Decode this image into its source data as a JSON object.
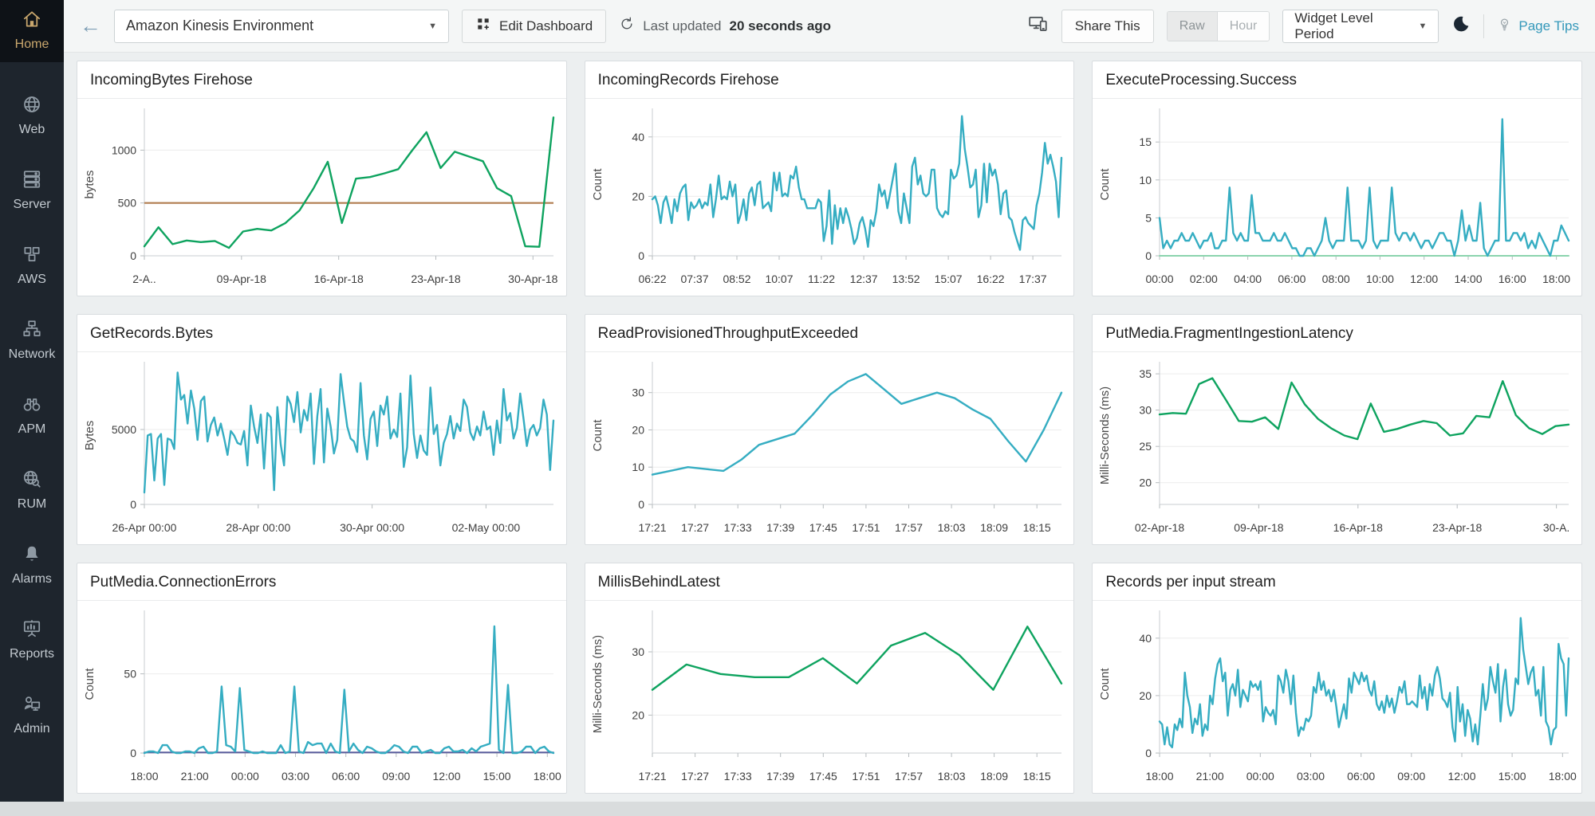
{
  "sidebar": {
    "items": [
      {
        "label": "Home",
        "icon": "home-icon",
        "active": true
      },
      {
        "label": "Web",
        "icon": "globe-icon",
        "active": false
      },
      {
        "label": "Server",
        "icon": "server-icon",
        "active": false
      },
      {
        "label": "AWS",
        "icon": "aws-cubes-icon",
        "active": false
      },
      {
        "label": "Network",
        "icon": "network-icon",
        "active": false
      },
      {
        "label": "APM",
        "icon": "binoculars-icon",
        "active": false
      },
      {
        "label": "RUM",
        "icon": "globe-magnifier-icon",
        "active": false
      },
      {
        "label": "Alarms",
        "icon": "bell-icon",
        "active": false
      },
      {
        "label": "Reports",
        "icon": "presentation-icon",
        "active": false
      },
      {
        "label": "Admin",
        "icon": "admin-icon",
        "active": false
      }
    ]
  },
  "topbar": {
    "back_icon": "back-arrow-icon",
    "dashboard_selector": {
      "value": "Amazon Kinesis Environment"
    },
    "edit_dashboard": "Edit Dashboard",
    "last_updated_prefix": "Last updated",
    "last_updated_value": "20 seconds ago",
    "share_this": "Share This",
    "granularity": {
      "options": [
        "Raw",
        "Hour"
      ],
      "selected": "Raw"
    },
    "widget_level_period": "Widget Level Period",
    "page_tips": "Page Tips",
    "icons": [
      "devices-icon",
      "refresh-icon",
      "add-widget-grid-icon",
      "moon-icon",
      "lightbulb-icon",
      "chevron-down-icon"
    ]
  },
  "colors": {
    "accent_teal": "#35adc2",
    "accent_green": "#0ea35f",
    "threshold_brown": "#b07c4f",
    "sidebar_active_gold": "#c9a76d",
    "link_blue": "#3498ba"
  },
  "chart_data": [
    {
      "type": "line",
      "title": "IncomingBytes Firehose",
      "y_label": "bytes",
      "y_ticks": [
        0,
        500,
        1000
      ],
      "ylim": [
        0,
        1350
      ],
      "x_labels": [
        "2-A..",
        "09-Apr-18",
        "16-Apr-18",
        "23-Apr-18",
        "30-Apr-18"
      ],
      "x_label_end": 0.95,
      "threshold": {
        "value": 500,
        "color": "#b07c4f"
      },
      "series": [
        {
          "color": "#0ea35f",
          "values": [
            90,
            270,
            110,
            145,
            130,
            140,
            75,
            230,
            255,
            240,
            310,
            430,
            640,
            890,
            310,
            730,
            745,
            780,
            820,
            1000,
            1170,
            830,
            985,
            940,
            895,
            640,
            565,
            90,
            85,
            1310
          ]
        }
      ]
    },
    {
      "type": "line",
      "title": "IncomingRecords Firehose",
      "y_label": "Count",
      "y_ticks": [
        0,
        20,
        40
      ],
      "ylim": [
        0,
        48
      ],
      "x_labels": [
        "06:22",
        "07:37",
        "08:52",
        "10:07",
        "11:22",
        "12:37",
        "13:52",
        "15:07",
        "16:22",
        "17:37"
      ],
      "x_label_end": 0.93,
      "series": [
        {
          "color": "#35adc2",
          "values": [
            19,
            20,
            17,
            11,
            18,
            20,
            16,
            11,
            19,
            15,
            21,
            23,
            24,
            12,
            18,
            16,
            17,
            19,
            16,
            18,
            17,
            24,
            13,
            19,
            27,
            19,
            20,
            19,
            25,
            20,
            24,
            11,
            14,
            19,
            12,
            21,
            23,
            17,
            24,
            25,
            16,
            17,
            18,
            15,
            28,
            22,
            28,
            20,
            21,
            20,
            27,
            26,
            30,
            23,
            19,
            19,
            16,
            16,
            16,
            16,
            19,
            18,
            5,
            10,
            22,
            4,
            17,
            9,
            16,
            11,
            16,
            13,
            9,
            4,
            6,
            11,
            13,
            9,
            3,
            12,
            10,
            15,
            24,
            20,
            22,
            16,
            21,
            26,
            31,
            15,
            11,
            21,
            16,
            11,
            30,
            33,
            24,
            27,
            21,
            20,
            21,
            29,
            29,
            16,
            14,
            13,
            15,
            14,
            29,
            26,
            27,
            31,
            47,
            36,
            30,
            23,
            24,
            29,
            13,
            17,
            31,
            18,
            31,
            27,
            29,
            24,
            14,
            21,
            22,
            13,
            12,
            8,
            5,
            2,
            12,
            13,
            11,
            10,
            9,
            17,
            21,
            28,
            38,
            31,
            34,
            30,
            25,
            13,
            33
          ]
        }
      ]
    },
    {
      "type": "line",
      "title": "ExecuteProcessing.Success",
      "y_label": "Count",
      "y_ticks": [
        0,
        5,
        10,
        15
      ],
      "ylim": [
        0,
        18.8
      ],
      "x_labels": [
        "00:00",
        "02:00",
        "04:00",
        "06:00",
        "08:00",
        "10:00",
        "12:00",
        "14:00",
        "16:00",
        "18:00"
      ],
      "x_label_end": 0.97,
      "series": [
        {
          "color": "#35adc2",
          "values": [
            5,
            1,
            2,
            1,
            2,
            2,
            3,
            2,
            2,
            3,
            2,
            1,
            2,
            2,
            3,
            1,
            1,
            2,
            2,
            9,
            3,
            2,
            3,
            2,
            2,
            8,
            3,
            3,
            2,
            2,
            2,
            3,
            2,
            2,
            3,
            2,
            1,
            1,
            0,
            0,
            1,
            1,
            0,
            1,
            2,
            5,
            2,
            1,
            2,
            2,
            2,
            9,
            2,
            2,
            2,
            1,
            2,
            9,
            2,
            1,
            2,
            2,
            2,
            9,
            3,
            2,
            3,
            3,
            2,
            3,
            2,
            1,
            2,
            2,
            1,
            2,
            3,
            3,
            2,
            2,
            0,
            2,
            6,
            2,
            4,
            2,
            2,
            7,
            1,
            0,
            1,
            2,
            2,
            18,
            2,
            2,
            3,
            3,
            2,
            3,
            1,
            2,
            1,
            3,
            2,
            1,
            0,
            2,
            2,
            4,
            3,
            2
          ]
        },
        {
          "color": "#8bd4ae",
          "width": 2,
          "values": [
            0,
            0
          ]
        }
      ]
    },
    {
      "type": "line",
      "title": "GetRecords.Bytes",
      "y_label": "Bytes",
      "y_ticks": [
        0,
        5000
      ],
      "ylim": [
        0,
        9200
      ],
      "x_labels": [
        "26-Apr 00:00",
        "28-Apr 00:00",
        "30-Apr 00:00",
        "02-May 00:00"
      ],
      "x_label_end": 0.835,
      "series": [
        {
          "color": "#35adc2",
          "values": [
            800,
            4600,
            4700,
            1600,
            4400,
            4700,
            1300,
            4400,
            4300,
            3700,
            8800,
            7000,
            7300,
            5400,
            7600,
            6400,
            4300,
            6900,
            7200,
            4200,
            5300,
            5800,
            4600,
            5400,
            4400,
            3300,
            4900,
            4600,
            4100,
            4000,
            4900,
            2600,
            6600,
            5200,
            4100,
            6000,
            2400,
            6100,
            5800,
            950,
            6500,
            4000,
            2600,
            7200,
            6700,
            5500,
            7500,
            4800,
            6300,
            5600,
            7400,
            2700,
            5900,
            7700,
            2800,
            6400,
            5200,
            3400,
            4300,
            8700,
            6900,
            5200,
            4400,
            4200,
            3500,
            8100,
            4600,
            3000,
            5700,
            6200,
            3900,
            6600,
            6000,
            7200,
            4400,
            5000,
            4500,
            7400,
            2500,
            3800,
            8600,
            4700,
            3100,
            4600,
            3600,
            3300,
            7800,
            4700,
            5300,
            2600,
            4100,
            4700,
            5900,
            4400,
            5400,
            4900,
            7000,
            6500,
            4800,
            4300,
            5200,
            4600,
            6200,
            5000,
            5200,
            3300,
            5600,
            4100,
            7700,
            5600,
            6100,
            4400,
            5100,
            7400,
            5700,
            3900,
            5000,
            5300,
            4600,
            5100,
            7000,
            6000,
            2300,
            5600
          ]
        }
      ]
    },
    {
      "type": "line",
      "title": "ReadProvisionedThroughputExceeded",
      "y_label": "Count",
      "y_ticks": [
        0,
        10,
        20,
        30
      ],
      "ylim": [
        0,
        37
      ],
      "x_labels": [
        "17:21",
        "17:27",
        "17:33",
        "17:39",
        "17:45",
        "17:51",
        "17:57",
        "18:03",
        "18:09",
        "18:15"
      ],
      "x_label_end": 0.94,
      "series": [
        {
          "color": "#35adc2",
          "values": [
            8,
            9,
            10,
            9.5,
            9,
            12,
            16,
            17.5,
            19,
            24,
            29.5,
            33,
            35,
            31,
            27,
            28.5,
            30,
            28.5,
            25.5,
            23,
            17,
            11.5,
            20,
            30
          ]
        }
      ]
    },
    {
      "type": "line",
      "title": "PutMedia.FragmentIngestionLatency",
      "y_label": "Milli-Seconds (ms)",
      "y_ticks": [
        20,
        25,
        30,
        35
      ],
      "ylim": [
        17,
        36
      ],
      "x_labels": [
        "02-Apr-18",
        "09-Apr-18",
        "16-Apr-18",
        "23-Apr-18",
        "30-A."
      ],
      "x_label_end": 0.97,
      "series": [
        {
          "color": "#0ea35f",
          "values": [
            29.4,
            29.6,
            29.5,
            33.6,
            34.4,
            31.5,
            28.5,
            28.4,
            29,
            27.4,
            33.8,
            30.8,
            28.8,
            27.5,
            26.5,
            26,
            30.9,
            27,
            27.4,
            28,
            28.5,
            28.2,
            26.5,
            26.8,
            29.2,
            29,
            34,
            29.3,
            27.5,
            26.7,
            27.8,
            28
          ]
        }
      ]
    },
    {
      "type": "line",
      "title": "PutMedia.ConnectionErrors",
      "y_label": "Count",
      "y_ticks": [
        0,
        50
      ],
      "ylim": [
        0,
        87
      ],
      "x_labels": [
        "18:00",
        "21:00",
        "00:00",
        "03:00",
        "06:00",
        "09:00",
        "12:00",
        "15:00",
        "18:00"
      ],
      "x_label_end": 0.985,
      "series": [
        {
          "color": "#35adc2",
          "values": [
            0,
            1,
            1,
            0,
            5,
            5,
            1,
            0,
            0,
            1,
            1,
            0,
            3,
            4,
            0,
            0,
            1,
            42,
            5,
            4,
            1,
            41,
            2,
            1,
            0,
            0,
            1,
            0,
            0,
            0,
            5,
            0,
            1,
            42,
            1,
            0,
            7,
            5,
            6,
            6,
            0,
            6,
            1,
            0,
            40,
            1,
            6,
            2,
            0,
            4,
            3,
            1,
            0,
            0,
            2,
            5,
            4,
            1,
            0,
            4,
            4,
            0,
            1,
            2,
            0,
            0,
            3,
            4,
            1,
            1,
            2,
            0,
            3,
            1,
            4,
            5,
            6,
            80,
            2,
            0,
            43,
            0,
            0,
            1,
            4,
            4,
            0,
            3,
            4,
            1,
            0
          ]
        },
        {
          "color": "#5c5f9e",
          "width": 2,
          "values": [
            0.4,
            0.4
          ]
        }
      ]
    },
    {
      "type": "line",
      "title": "MillisBehindLatest",
      "y_label": "Milli-Seconds (ms)",
      "y_ticks": [
        20,
        30
      ],
      "ylim": [
        14,
        35.8
      ],
      "x_labels": [
        "17:21",
        "17:27",
        "17:33",
        "17:39",
        "17:45",
        "17:51",
        "17:57",
        "18:03",
        "18:09",
        "18:15"
      ],
      "x_label_end": 0.94,
      "series": [
        {
          "color": "#0ea35f",
          "values": [
            24,
            28,
            26.5,
            26,
            26,
            29,
            25,
            31,
            33,
            29.5,
            24,
            34,
            25
          ]
        }
      ]
    },
    {
      "type": "line",
      "title": "Records per input stream",
      "y_label": "Count",
      "y_ticks": [
        0,
        20,
        40
      ],
      "ylim": [
        0,
        48
      ],
      "x_labels": [
        "18:00",
        "21:00",
        "00:00",
        "03:00",
        "06:00",
        "09:00",
        "12:00",
        "15:00",
        "18:00"
      ],
      "x_label_end": 0.985,
      "series": [
        {
          "color": "#35adc2",
          "values": [
            11,
            10,
            3,
            9,
            3,
            2,
            10,
            8,
            12,
            9,
            28,
            20,
            16,
            7,
            12,
            10,
            17,
            6,
            10,
            8,
            20,
            17,
            26,
            31,
            33,
            25,
            28,
            13,
            22,
            24,
            20,
            29,
            16,
            22,
            20,
            18,
            25,
            23,
            24,
            22,
            25,
            11,
            16,
            14,
            13,
            15,
            10,
            27,
            25,
            21,
            29,
            25,
            17,
            27,
            14,
            6,
            9,
            8,
            12,
            11,
            13,
            23,
            21,
            28,
            22,
            25,
            20,
            22,
            18,
            22,
            16,
            9,
            13,
            17,
            12,
            26,
            21,
            28,
            26,
            24,
            28,
            25,
            27,
            22,
            20,
            25,
            17,
            15,
            18,
            14,
            20,
            16,
            19,
            14,
            18,
            23,
            21,
            25,
            17,
            17,
            18,
            17,
            16,
            27,
            19,
            23,
            15,
            24,
            20,
            27,
            30,
            26,
            19,
            18,
            16,
            21,
            9,
            4,
            23,
            11,
            17,
            6,
            15,
            12,
            4,
            10,
            3,
            13,
            24,
            15,
            19,
            30,
            25,
            21,
            31,
            11,
            23,
            29,
            17,
            13,
            15,
            26,
            24,
            47,
            36,
            30,
            24,
            28,
            30,
            20,
            22,
            13,
            30,
            11,
            9,
            3,
            8,
            9,
            38,
            33,
            31,
            13,
            33
          ]
        }
      ]
    }
  ]
}
